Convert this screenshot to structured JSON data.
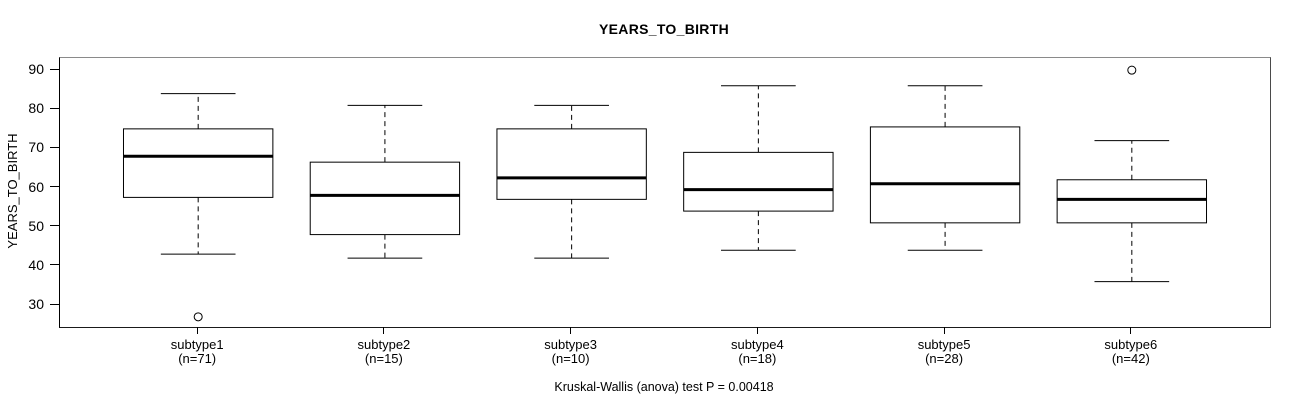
{
  "chart_data": {
    "type": "boxplot",
    "title": "YEARS_TO_BIRTH",
    "ylabel": "YEARS_TO_BIRTH",
    "caption": "Kruskal-Wallis (anova) test P = 0.00418",
    "y_ticks": [
      90,
      80,
      70,
      60,
      50,
      40,
      30
    ],
    "ylim": [
      24.4,
      93.1
    ],
    "grid": false,
    "categories": [
      "subtype1",
      "subtype2",
      "subtype3",
      "subtype4",
      "subtype5",
      "subtype6"
    ],
    "series": [
      {
        "label": "subtype1",
        "n": 71,
        "n_label": "(n=71)",
        "whisker_low": 43,
        "q1": 57.5,
        "median": 68,
        "q3": 75,
        "whisker_high": 84,
        "outliers": [
          27
        ]
      },
      {
        "label": "subtype2",
        "n": 15,
        "n_label": "(n=15)",
        "whisker_low": 42,
        "q1": 48,
        "median": 58,
        "q3": 66.5,
        "whisker_high": 81,
        "outliers": []
      },
      {
        "label": "subtype3",
        "n": 10,
        "n_label": "(n=10)",
        "whisker_low": 42,
        "q1": 57,
        "median": 62.5,
        "q3": 75,
        "whisker_high": 81,
        "outliers": []
      },
      {
        "label": "subtype4",
        "n": 18,
        "n_label": "(n=18)",
        "whisker_low": 44,
        "q1": 54,
        "median": 59.5,
        "q3": 69,
        "whisker_high": 86,
        "outliers": []
      },
      {
        "label": "subtype5",
        "n": 28,
        "n_label": "(n=28)",
        "whisker_low": 44,
        "q1": 51,
        "median": 61,
        "q3": 75.5,
        "whisker_high": 86,
        "outliers": []
      },
      {
        "label": "subtype6",
        "n": 42,
        "n_label": "(n=42)",
        "whisker_low": 36,
        "q1": 51,
        "median": 57,
        "q3": 62,
        "whisker_high": 72,
        "outliers": [
          90
        ]
      }
    ],
    "colors": {
      "line": "#000000",
      "box_fill": "#ffffff",
      "background": "#ffffff",
      "text": "#000000"
    }
  }
}
